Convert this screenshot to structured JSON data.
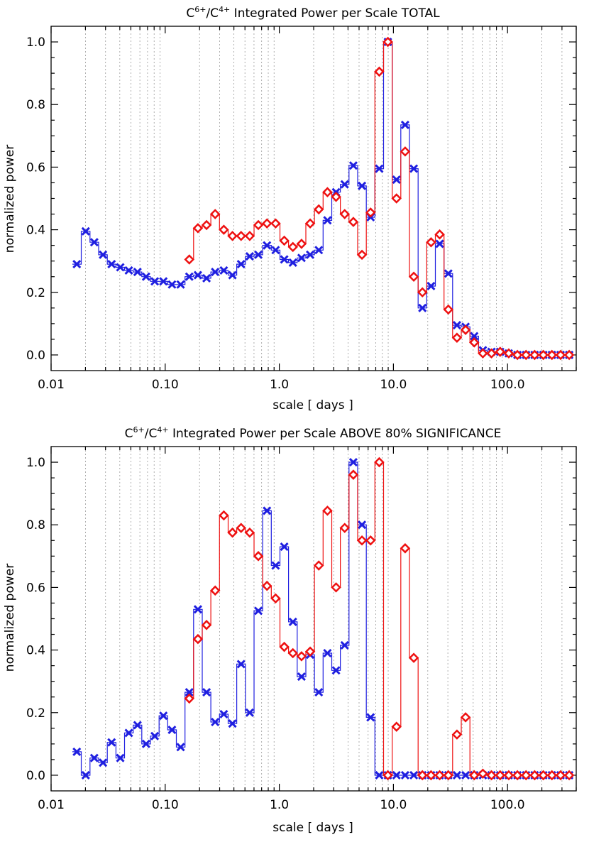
{
  "chart_data": [
    {
      "type": "line",
      "title": {
        "base1": "C",
        "sup1": "6+",
        "sep": "/C",
        "sup2": "4+",
        "rest": " Integrated Power per Scale TOTAL"
      },
      "xlabel": "scale [ days ]",
      "ylabel": "normalized power",
      "xscale": "log",
      "xlim": [
        0.01,
        400
      ],
      "ylim": [
        -0.05,
        1.05
      ],
      "xticks": [
        {
          "v": 0.01,
          "label": "0.01"
        },
        {
          "v": 0.1,
          "label": "0.10"
        },
        {
          "v": 1,
          "label": "1.0"
        },
        {
          "v": 10,
          "label": "10.0"
        },
        {
          "v": 100,
          "label": "100.0"
        }
      ],
      "yticks": [
        {
          "v": 0,
          "label": "0.0"
        },
        {
          "v": 0.2,
          "label": "0.2"
        },
        {
          "v": 0.4,
          "label": "0.4"
        },
        {
          "v": 0.6,
          "label": "0.6"
        },
        {
          "v": 0.8,
          "label": "0.8"
        },
        {
          "v": 1,
          "label": "1.0"
        }
      ],
      "grid": "vertical dotted minor lines",
      "series": [
        {
          "color": "#1f1fe0",
          "marker": "x",
          "x": [
            0.0168,
            0.0201,
            0.0239,
            0.0285,
            0.0339,
            0.0404,
            0.048,
            0.0572,
            0.068,
            0.081,
            0.0964,
            0.1147,
            0.1366,
            0.1626,
            0.1935,
            0.2303,
            0.2741,
            0.3263,
            0.3884,
            0.4623,
            0.5503,
            0.655,
            0.7797,
            0.9282,
            1.1048,
            1.3151,
            1.5654,
            1.8634,
            2.218,
            2.641,
            3.143,
            3.741,
            4.454,
            5.301,
            6.31,
            7.512,
            8.942,
            10.64,
            12.67,
            15.08,
            17.95,
            21.37,
            25.43,
            30.28,
            36.04,
            42.9,
            51.07,
            60.79,
            72.36,
            86.14,
            102.5,
            122.1,
            145.3,
            172.9,
            205.9,
            245.0,
            291.7,
            347.2
          ],
          "y": [
            0.29,
            0.395,
            0.36,
            0.32,
            0.29,
            0.28,
            0.27,
            0.265,
            0.25,
            0.235,
            0.235,
            0.225,
            0.225,
            0.25,
            0.255,
            0.245,
            0.265,
            0.27,
            0.255,
            0.29,
            0.315,
            0.32,
            0.35,
            0.335,
            0.305,
            0.295,
            0.31,
            0.32,
            0.335,
            0.43,
            0.52,
            0.545,
            0.605,
            0.54,
            0.44,
            0.595,
            1.0,
            0.56,
            0.735,
            0.595,
            0.15,
            0.22,
            0.355,
            0.26,
            0.095,
            0.09,
            0.06,
            0.015,
            0.01,
            0.01,
            0.005,
            0.0,
            0.0,
            0.0,
            0.0,
            0.0,
            0.0,
            0.0
          ]
        },
        {
          "color": "#ee1111",
          "marker": "diamond",
          "x": [
            0.1626,
            0.1935,
            0.2303,
            0.2741,
            0.3263,
            0.3884,
            0.4623,
            0.5503,
            0.655,
            0.7797,
            0.9282,
            1.1048,
            1.3151,
            1.5654,
            1.8634,
            2.218,
            2.641,
            3.143,
            3.741,
            4.454,
            5.301,
            6.31,
            7.512,
            8.942,
            10.64,
            12.67,
            15.08,
            17.95,
            21.37,
            25.43,
            30.28,
            36.04,
            42.9,
            51.07,
            60.79,
            72.36,
            86.14,
            102.5,
            122.1,
            145.3,
            172.9,
            205.9,
            245.0,
            291.7,
            347.2
          ],
          "y": [
            0.305,
            0.405,
            0.415,
            0.45,
            0.4,
            0.38,
            0.38,
            0.38,
            0.415,
            0.42,
            0.42,
            0.365,
            0.345,
            0.355,
            0.42,
            0.465,
            0.52,
            0.505,
            0.45,
            0.425,
            0.32,
            0.455,
            0.905,
            1.0,
            0.5,
            0.65,
            0.25,
            0.2,
            0.36,
            0.385,
            0.145,
            0.055,
            0.08,
            0.04,
            0.005,
            0.005,
            0.01,
            0.005,
            0.0,
            0.0,
            0.0,
            0.0,
            0.0,
            0.0,
            0.0
          ]
        }
      ]
    },
    {
      "type": "line",
      "title": {
        "base1": "C",
        "sup1": "6+",
        "sep": "/C",
        "sup2": "4+",
        "rest": " Integrated Power per Scale ABOVE 80% SIGNIFICANCE"
      },
      "xlabel": "scale [ days ]",
      "ylabel": "normalized power",
      "xscale": "log",
      "xlim": [
        0.01,
        400
      ],
      "ylim": [
        -0.05,
        1.05
      ],
      "xticks": [
        {
          "v": 0.01,
          "label": "0.01"
        },
        {
          "v": 0.1,
          "label": "0.10"
        },
        {
          "v": 1,
          "label": "1.0"
        },
        {
          "v": 10,
          "label": "10.0"
        },
        {
          "v": 100,
          "label": "100.0"
        }
      ],
      "yticks": [
        {
          "v": 0,
          "label": "0.0"
        },
        {
          "v": 0.2,
          "label": "0.2"
        },
        {
          "v": 0.4,
          "label": "0.4"
        },
        {
          "v": 0.6,
          "label": "0.6"
        },
        {
          "v": 0.8,
          "label": "0.8"
        },
        {
          "v": 1,
          "label": "1.0"
        }
      ],
      "grid": "vertical dotted minor lines",
      "series": [
        {
          "color": "#1f1fe0",
          "marker": "x",
          "x": [
            0.0168,
            0.0201,
            0.0239,
            0.0285,
            0.0339,
            0.0404,
            0.048,
            0.0572,
            0.068,
            0.081,
            0.0964,
            0.1147,
            0.1366,
            0.1626,
            0.1935,
            0.2303,
            0.2741,
            0.3263,
            0.3884,
            0.4623,
            0.5503,
            0.655,
            0.7797,
            0.9282,
            1.1048,
            1.3151,
            1.5654,
            1.8634,
            2.218,
            2.641,
            3.143,
            3.741,
            4.454,
            5.301,
            6.31,
            7.512,
            8.942,
            10.64,
            12.67,
            15.08,
            17.95,
            21.37,
            25.43,
            30.28,
            36.04,
            42.9,
            51.07,
            60.79,
            72.36,
            86.14,
            102.5,
            122.1,
            145.3,
            172.9,
            205.9,
            245.0,
            291.7,
            347.2
          ],
          "y": [
            0.075,
            0.0,
            0.055,
            0.04,
            0.105,
            0.055,
            0.135,
            0.16,
            0.1,
            0.125,
            0.19,
            0.145,
            0.09,
            0.265,
            0.53,
            0.265,
            0.17,
            0.195,
            0.165,
            0.355,
            0.2,
            0.525,
            0.845,
            0.67,
            0.73,
            0.49,
            0.315,
            0.385,
            0.265,
            0.39,
            0.335,
            0.415,
            1.0,
            0.8,
            0.185,
            0.0,
            0.0,
            0.0,
            0.0,
            0.0,
            0.0,
            0.0,
            0.0,
            0.0,
            0.0,
            0.0,
            0.0,
            0.0,
            0.0,
            0.0,
            0.0,
            0.0,
            0.0,
            0.0,
            0.0,
            0.0,
            0.0,
            0.0
          ]
        },
        {
          "color": "#ee1111",
          "marker": "diamond",
          "x": [
            0.1626,
            0.1935,
            0.2303,
            0.2741,
            0.3263,
            0.3884,
            0.4623,
            0.5503,
            0.655,
            0.7797,
            0.9282,
            1.1048,
            1.3151,
            1.5654,
            1.8634,
            2.218,
            2.641,
            3.143,
            3.741,
            4.454,
            5.301,
            6.31,
            7.512,
            8.942,
            10.64,
            12.67,
            15.08,
            17.95,
            21.37,
            25.43,
            30.28,
            36.04,
            42.9,
            51.07,
            60.79,
            72.36,
            86.14,
            102.5,
            122.1,
            145.3,
            172.9,
            205.9,
            245.0,
            291.7,
            347.2
          ],
          "y": [
            0.245,
            0.435,
            0.48,
            0.59,
            0.83,
            0.775,
            0.79,
            0.775,
            0.7,
            0.605,
            0.565,
            0.41,
            0.39,
            0.38,
            0.395,
            0.67,
            0.845,
            0.6,
            0.79,
            0.96,
            0.75,
            0.75,
            1.0,
            0.0,
            0.155,
            0.725,
            0.375,
            0.0,
            0.0,
            0.0,
            0.0,
            0.13,
            0.185,
            0.0,
            0.005,
            0.0,
            0.0,
            0.0,
            0.0,
            0.0,
            0.0,
            0.0,
            0.0,
            0.0,
            0.0
          ]
        }
      ]
    }
  ]
}
